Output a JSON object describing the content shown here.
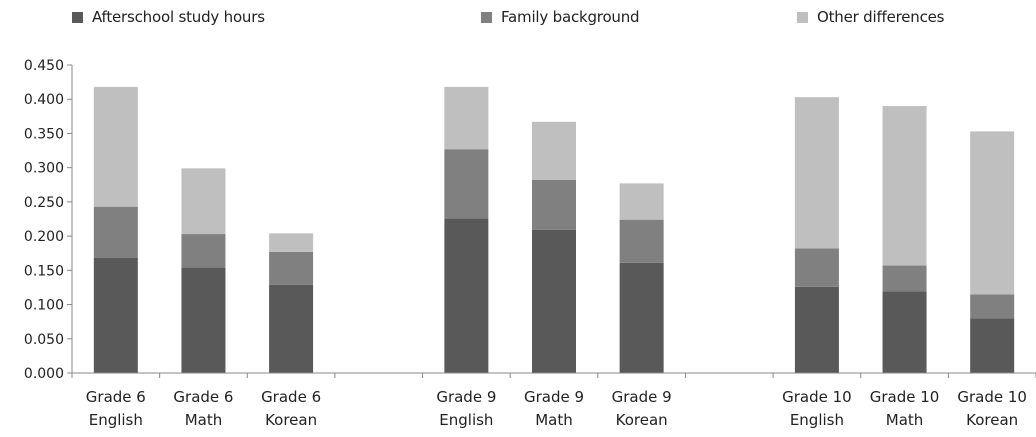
{
  "chart_data": {
    "type": "bar",
    "stacked": true,
    "title": "",
    "xlabel": "",
    "ylabel": "",
    "ylim": [
      0,
      0.45
    ],
    "yticks": [
      "0.000",
      "0.050",
      "0.100",
      "0.150",
      "0.200",
      "0.250",
      "0.300",
      "0.350",
      "0.400",
      "0.450"
    ],
    "grid": false,
    "legend_position": "top",
    "categories": [
      [
        "Grade 6",
        "English"
      ],
      [
        "Grade 6",
        "Math"
      ],
      [
        "Grade 6",
        "Korean"
      ],
      [
        "",
        ""
      ],
      [
        "Grade 9",
        "English"
      ],
      [
        "Grade 9",
        "Math"
      ],
      [
        "Grade 9",
        "Korean"
      ],
      [
        "",
        ""
      ],
      [
        "Grade 10",
        "English"
      ],
      [
        "Grade 10",
        "Math"
      ],
      [
        "Grade 10",
        "Korean"
      ]
    ],
    "series": [
      {
        "name": "Afterschool study hours",
        "color": "#595959",
        "values": [
          0.168,
          0.154,
          0.129,
          null,
          0.226,
          0.209,
          0.161,
          null,
          0.126,
          0.119,
          0.08
        ]
      },
      {
        "name": "Family background",
        "color": "#808080",
        "values": [
          0.075,
          0.049,
          0.048,
          null,
          0.101,
          0.073,
          0.063,
          null,
          0.056,
          0.038,
          0.035
        ]
      },
      {
        "name": "Other differences",
        "color": "#bfbfbf",
        "values": [
          0.175,
          0.096,
          0.027,
          null,
          0.091,
          0.085,
          0.053,
          null,
          0.221,
          0.233,
          0.238
        ]
      }
    ]
  }
}
